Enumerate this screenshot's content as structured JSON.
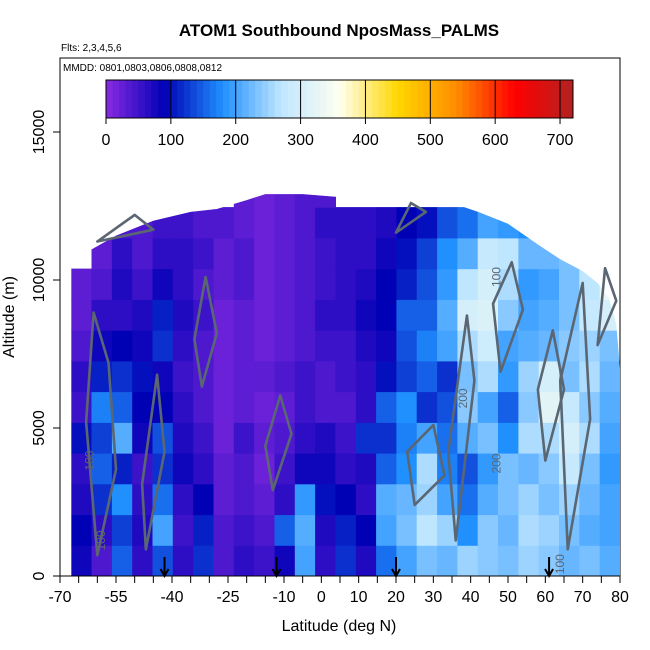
{
  "chart_data": {
    "type": "heatmap",
    "title": "ATOM1 Southbound NposMass_PALMS",
    "flights_note": "Flts: 2,3,4,5,6",
    "dates_note": "MMDD: 0801,0803,0806,0808,0812",
    "xlabel": "Latitude (deg N)",
    "ylabel": "Altitude (m)",
    "xlim": [
      -70,
      80
    ],
    "ylim": [
      0,
      17500
    ],
    "x_ticks": [
      "-70",
      "-55",
      "-40",
      "-25",
      "-10",
      "0",
      "10",
      "20",
      "30",
      "40",
      "50",
      "60",
      "70",
      "80"
    ],
    "x_tick_values": [
      -70,
      -55,
      -40,
      -25,
      -10,
      0,
      10,
      20,
      30,
      40,
      50,
      60,
      70,
      80
    ],
    "x_minor_ticks": [
      -65,
      -60,
      -50,
      -45,
      -35,
      -30,
      -20,
      -15,
      -5,
      5,
      15,
      25,
      35,
      45,
      55,
      65,
      75
    ],
    "y_ticks": [
      "0",
      "5000",
      "10000",
      "15000"
    ],
    "y_tick_values": [
      0,
      5000,
      10000,
      15000
    ],
    "colorbar": {
      "min": 0,
      "max": 720,
      "tick_labels": [
        "0",
        "100",
        "200",
        "300",
        "400",
        "500",
        "600",
        "700"
      ],
      "tick_values": [
        0,
        100,
        200,
        300,
        400,
        500,
        600,
        700
      ],
      "colors": [
        "#8a2be2",
        "#0000b5",
        "#2090ff",
        "#bfe6ff",
        "#fffff0",
        "#ffd700",
        "#ff8c00",
        "#ff0000",
        "#b22222"
      ]
    },
    "contour_labels": [
      {
        "text": "100",
        "lat": -58,
        "alt": 1200
      },
      {
        "text": "100",
        "lat": -61,
        "alt": 3900
      },
      {
        "text": "200",
        "lat": 39,
        "alt": 6000
      },
      {
        "text": "200",
        "lat": 48,
        "alt": 3800
      },
      {
        "text": "100",
        "lat": 48,
        "alt": 10100
      },
      {
        "text": "100",
        "lat": 65,
        "alt": 400
      }
    ],
    "flight_markers": [
      -42,
      -12,
      20,
      61
    ],
    "profile_top": [
      [
        -67,
        10500
      ],
      [
        -62,
        11000
      ],
      [
        -55,
        11500
      ],
      [
        -45,
        12000
      ],
      [
        -35,
        12300
      ],
      [
        -28,
        12400
      ],
      [
        -20,
        12700
      ],
      [
        -15,
        12900
      ],
      [
        -5,
        12900
      ],
      [
        5,
        12800
      ],
      [
        12,
        12900
      ],
      [
        16,
        13400
      ],
      [
        20,
        12900
      ],
      [
        26,
        12900
      ],
      [
        35,
        12600
      ],
      [
        42,
        12300
      ],
      [
        50,
        11900
      ],
      [
        58,
        11200
      ],
      [
        64,
        10700
      ],
      [
        70,
        10300
      ],
      [
        74,
        9900
      ],
      [
        77,
        9400
      ],
      [
        79,
        8500
      ],
      [
        80,
        7000
      ],
      [
        80,
        0
      ]
    ],
    "cell_values": [
      [
        80,
        40,
        150,
        60,
        140,
        60,
        120,
        40,
        60,
        50,
        80,
        200,
        60,
        120,
        70,
        160,
        200,
        230,
        220,
        250,
        240,
        230,
        250,
        240,
        220,
        230,
        210
      ],
      [
        90,
        60,
        130,
        70,
        200,
        50,
        110,
        40,
        50,
        40,
        150,
        210,
        70,
        110,
        90,
        200,
        230,
        270,
        250,
        180,
        240,
        220,
        260,
        250,
        230,
        210,
        200
      ],
      [
        70,
        120,
        180,
        60,
        160,
        60,
        90,
        30,
        40,
        30,
        60,
        190,
        100,
        90,
        60,
        210,
        220,
        250,
        200,
        160,
        210,
        230,
        250,
        230,
        250,
        220,
        200
      ],
      [
        60,
        150,
        110,
        50,
        120,
        80,
        60,
        30,
        40,
        20,
        50,
        80,
        80,
        60,
        70,
        150,
        180,
        260,
        170,
        140,
        190,
        230,
        220,
        240,
        280,
        230,
        190
      ],
      [
        100,
        130,
        210,
        80,
        140,
        70,
        50,
        20,
        50,
        30,
        40,
        60,
        70,
        50,
        120,
        120,
        170,
        200,
        160,
        210,
        230,
        180,
        260,
        260,
        300,
        260,
        200
      ],
      [
        50,
        170,
        150,
        90,
        90,
        60,
        40,
        20,
        30,
        20,
        30,
        50,
        40,
        40,
        60,
        150,
        180,
        120,
        140,
        240,
        200,
        150,
        240,
        320,
        280,
        240,
        210
      ],
      [
        60,
        110,
        120,
        100,
        80,
        50,
        40,
        20,
        30,
        30,
        40,
        50,
        40,
        50,
        60,
        100,
        130,
        150,
        120,
        230,
        260,
        190,
        250,
        300,
        230,
        260,
        220
      ],
      [
        40,
        80,
        90,
        80,
        120,
        60,
        40,
        20,
        30,
        20,
        30,
        40,
        50,
        50,
        70,
        80,
        140,
        170,
        200,
        260,
        290,
        200,
        210,
        220,
        240,
        250,
        230
      ],
      [
        30,
        60,
        60,
        70,
        110,
        70,
        50,
        20,
        30,
        20,
        30,
        40,
        60,
        60,
        80,
        90,
        150,
        150,
        210,
        300,
        310,
        240,
        200,
        210,
        230,
        280,
        300
      ],
      [
        30,
        40,
        70,
        50,
        80,
        60,
        40,
        30,
        40,
        20,
        30,
        40,
        50,
        60,
        70,
        90,
        110,
        140,
        190,
        270,
        300,
        260,
        190,
        200,
        230,
        270,
        330
      ],
      [
        0,
        30,
        60,
        40,
        60,
        60,
        50,
        30,
        40,
        20,
        30,
        40,
        50,
        60,
        60,
        80,
        100,
        130,
        180,
        210,
        280,
        270,
        220,
        220,
        230,
        250,
        0
      ],
      [
        0,
        0,
        40,
        40,
        50,
        50,
        40,
        40,
        30,
        20,
        30,
        40,
        60,
        60,
        60,
        70,
        90,
        100,
        140,
        160,
        200,
        190,
        180,
        190,
        180,
        0,
        0
      ],
      [
        0,
        0,
        0,
        0,
        0,
        0,
        0,
        0,
        30,
        20,
        30,
        40,
        40,
        0,
        0,
        0,
        0,
        0,
        0,
        0,
        0,
        0,
        0,
        0,
        0,
        0,
        0
      ]
    ]
  }
}
